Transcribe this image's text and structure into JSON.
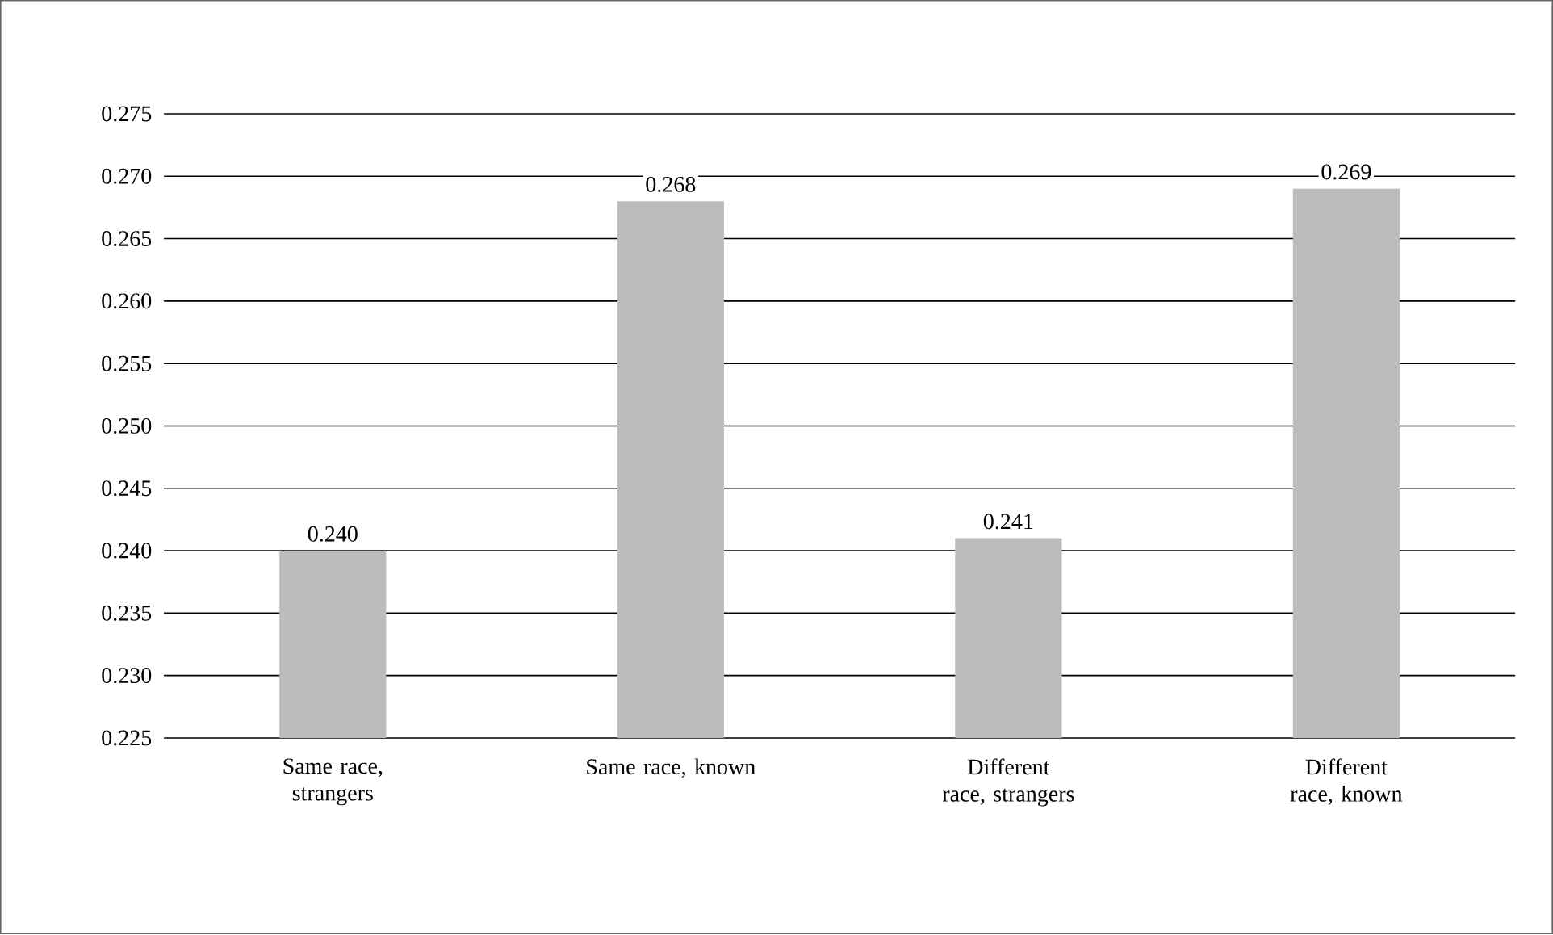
{
  "chart_data": {
    "type": "bar",
    "categories": [
      "Same race, strangers",
      "Same race, known",
      "Different race, strangers",
      "Different race, known"
    ],
    "values": [
      0.24,
      0.268,
      0.241,
      0.269
    ],
    "value_labels": [
      "0.240",
      "0.268",
      "0.241",
      "0.269"
    ],
    "color": "#bcbcbe",
    "ylim": [
      0.225,
      0.275
    ],
    "yticks": [
      0.225,
      {
        "value": 0.23,
        "label": "0.230"
      },
      0.235,
      {
        "value": 0.24,
        "label": "0.240"
      },
      0.245,
      {
        "value": 0.25,
        "label": "0.250"
      },
      0.255,
      {
        "value": 0.26,
        "label": "0.260"
      },
      0.265,
      {
        "value": 0.27,
        "label": "0.270"
      },
      0.275
    ],
    "grid": "y"
  }
}
